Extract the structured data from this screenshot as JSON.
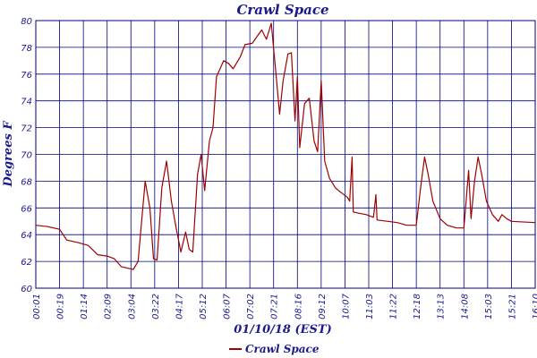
{
  "chart_data": {
    "type": "line",
    "title": "Crawl Space",
    "xlabel": "01/10/18 (EST)",
    "ylabel": "Degrees F",
    "ylim": [
      60,
      80
    ],
    "yticks": [
      60,
      62,
      64,
      66,
      68,
      70,
      72,
      74,
      76,
      78,
      80
    ],
    "xticks": [
      "00:01",
      "00:19",
      "01:14",
      "02:09",
      "03:04",
      "03:22",
      "04:17",
      "05:12",
      "06:07",
      "07:02",
      "07:21",
      "08:16",
      "09:12",
      "10:07",
      "11:03",
      "11:22",
      "12:18",
      "13:13",
      "14:08",
      "15:03",
      "15:21",
      "16:10"
    ],
    "grid": true,
    "legend_position": "bottom-center",
    "series": [
      {
        "name": "Crawl Space",
        "color": "#a00000",
        "points": [
          [
            0,
            64.7
          ],
          [
            0.5,
            64.6
          ],
          [
            1,
            64.4
          ],
          [
            1.3,
            63.6
          ],
          [
            1.8,
            63.4
          ],
          [
            2.2,
            63.2
          ],
          [
            2.6,
            62.5
          ],
          [
            3.0,
            62.4
          ],
          [
            3.3,
            62.2
          ],
          [
            3.6,
            61.6
          ],
          [
            4.1,
            61.4
          ],
          [
            4.3,
            62.0
          ],
          [
            4.6,
            68.0
          ],
          [
            4.8,
            66.0
          ],
          [
            4.95,
            62.2
          ],
          [
            5.1,
            62.1
          ],
          [
            5.3,
            67.5
          ],
          [
            5.5,
            69.5
          ],
          [
            5.7,
            66.5
          ],
          [
            5.9,
            64.5
          ],
          [
            6.1,
            62.7
          ],
          [
            6.3,
            64.2
          ],
          [
            6.45,
            62.9
          ],
          [
            6.6,
            62.7
          ],
          [
            6.8,
            68.5
          ],
          [
            6.95,
            70.0
          ],
          [
            7.1,
            67.3
          ],
          [
            7.3,
            71.0
          ],
          [
            7.45,
            72.0
          ],
          [
            7.6,
            75.8
          ],
          [
            7.9,
            77.0
          ],
          [
            8.1,
            76.8
          ],
          [
            8.3,
            76.4
          ],
          [
            8.6,
            77.3
          ],
          [
            8.8,
            78.2
          ],
          [
            9.1,
            78.3
          ],
          [
            9.5,
            79.3
          ],
          [
            9.7,
            78.6
          ],
          [
            9.9,
            79.8
          ],
          [
            10.1,
            76.0
          ],
          [
            10.25,
            73.0
          ],
          [
            10.4,
            75.5
          ],
          [
            10.6,
            77.5
          ],
          [
            10.75,
            77.6
          ],
          [
            10.9,
            72.5
          ],
          [
            11.0,
            75.8
          ],
          [
            11.1,
            70.5
          ],
          [
            11.3,
            73.8
          ],
          [
            11.5,
            74.2
          ],
          [
            11.7,
            71.0
          ],
          [
            11.85,
            70.2
          ],
          [
            12.0,
            75.5
          ],
          [
            12.15,
            69.5
          ],
          [
            12.35,
            68.2
          ],
          [
            12.6,
            67.5
          ],
          [
            12.8,
            67.2
          ],
          [
            13.1,
            66.8
          ],
          [
            13.2,
            66.5
          ],
          [
            13.3,
            69.8
          ],
          [
            13.35,
            65.7
          ],
          [
            13.6,
            65.6
          ],
          [
            13.9,
            65.5
          ],
          [
            14.2,
            65.3
          ],
          [
            14.3,
            67.0
          ],
          [
            14.35,
            65.1
          ],
          [
            14.8,
            65.0
          ],
          [
            15.2,
            64.9
          ],
          [
            15.6,
            64.7
          ],
          [
            16.0,
            64.7
          ],
          [
            16.2,
            67.8
          ],
          [
            16.35,
            69.8
          ],
          [
            16.5,
            68.5
          ],
          [
            16.7,
            66.5
          ],
          [
            17.0,
            65.2
          ],
          [
            17.3,
            64.7
          ],
          [
            17.7,
            64.5
          ],
          [
            18.0,
            64.5
          ],
          [
            18.2,
            68.8
          ],
          [
            18.3,
            65.2
          ],
          [
            18.45,
            68.0
          ],
          [
            18.6,
            69.8
          ],
          [
            18.75,
            68.5
          ],
          [
            18.95,
            66.5
          ],
          [
            19.2,
            65.5
          ],
          [
            19.45,
            65.0
          ],
          [
            19.6,
            65.5
          ],
          [
            19.8,
            65.2
          ],
          [
            20.0,
            65.0
          ],
          [
            21.0,
            64.9
          ]
        ]
      }
    ]
  }
}
